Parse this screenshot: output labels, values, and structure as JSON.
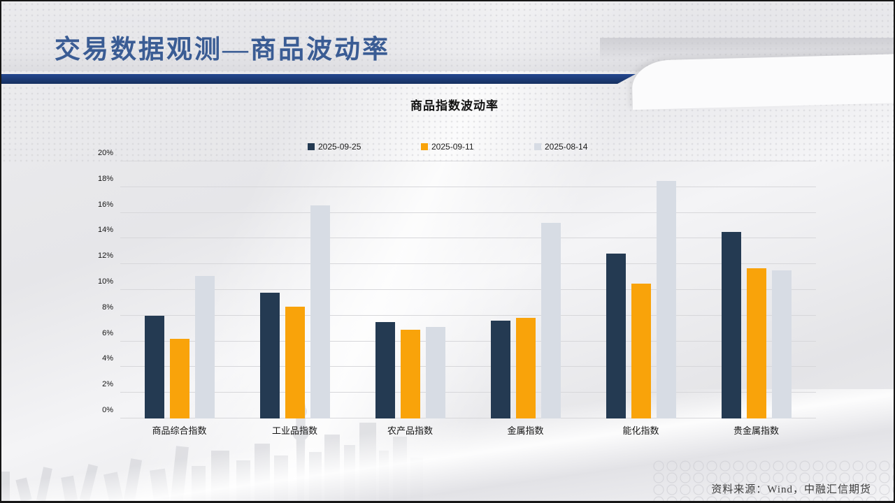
{
  "slide": {
    "title": "交易数据观测—商品波动率",
    "source": "资料来源：Wind，中融汇信期货"
  },
  "colors": {
    "accent_bar": "#1c3a74",
    "title_text": "#3a5c94",
    "series_navy": "#243a52",
    "series_orange": "#f9a30a",
    "series_gray": "#d7dce4",
    "gridline": "#d7d7da"
  },
  "chart_data": {
    "type": "bar",
    "title": "商品指数波动率",
    "categories": [
      "商品综合指数",
      "工业品指数",
      "农产品指数",
      "金属指数",
      "能化指数",
      "贵金属指数"
    ],
    "series": [
      {
        "name": "2025-09-25",
        "color": "#243a52",
        "values": [
          8.0,
          9.8,
          7.5,
          7.6,
          12.8,
          14.5
        ]
      },
      {
        "name": "2025-09-11",
        "color": "#f9a30a",
        "values": [
          6.2,
          8.7,
          6.9,
          7.8,
          10.5,
          11.7
        ]
      },
      {
        "name": "2025-08-14",
        "color": "#d7dce4",
        "values": [
          11.1,
          16.6,
          7.1,
          15.2,
          18.5,
          11.5
        ]
      }
    ],
    "xlabel": "",
    "ylabel": "",
    "ylim": [
      0,
      20
    ],
    "ytick_step": 2,
    "ytick_suffix": "%",
    "grid": true,
    "legend_position": "top"
  }
}
